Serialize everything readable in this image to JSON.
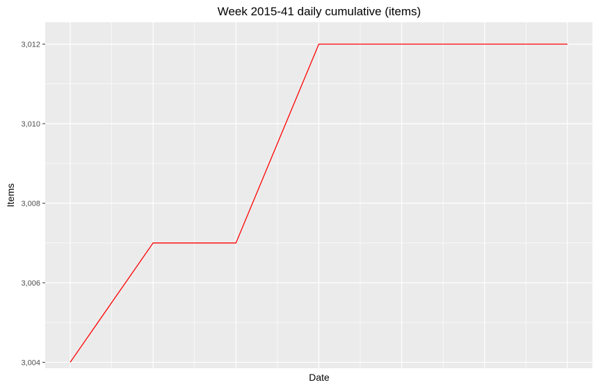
{
  "chart_data": {
    "type": "line",
    "title": "Week 2015-41 daily cumulative (items)",
    "xlabel": "Date",
    "ylabel": "Items",
    "x_tick_labels": [],
    "ylim": [
      3003.85,
      3012.55
    ],
    "y_ticks": [
      3004,
      3006,
      3008,
      3010,
      3012
    ],
    "y_tick_labels": [
      "3,004",
      "3,006",
      "3,008",
      "3,010",
      "3,012"
    ],
    "grid": true,
    "legend": "none",
    "series": [
      {
        "values": [
          3004,
          3007,
          3007,
          3012,
          3012,
          3012,
          3012
        ],
        "color": "#ff0000"
      }
    ]
  },
  "colors": {
    "panel": "#ebebeb",
    "grid_major": "#ffffff",
    "tick": "#333333"
  }
}
